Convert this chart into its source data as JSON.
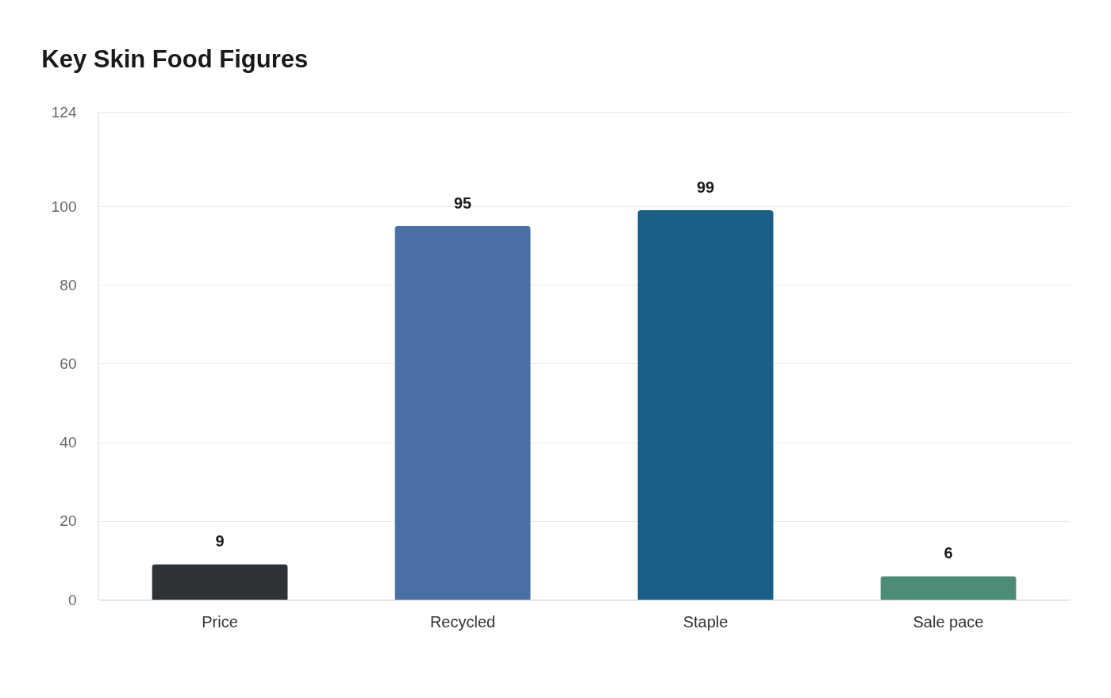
{
  "chart_data": {
    "type": "bar",
    "title": "Key Skin Food Figures",
    "categories": [
      "Price",
      "Recycled",
      "Staple",
      "Sale pace"
    ],
    "values": [
      9,
      95,
      99,
      6
    ],
    "colors": [
      "#2d3236",
      "#4a6fa5",
      "#1a5f87",
      "#4e8c7a"
    ],
    "ylim": [
      0,
      124
    ],
    "yticks": [
      0,
      20,
      40,
      60,
      80,
      100,
      124
    ],
    "grid": "y",
    "data_labels": true
  }
}
